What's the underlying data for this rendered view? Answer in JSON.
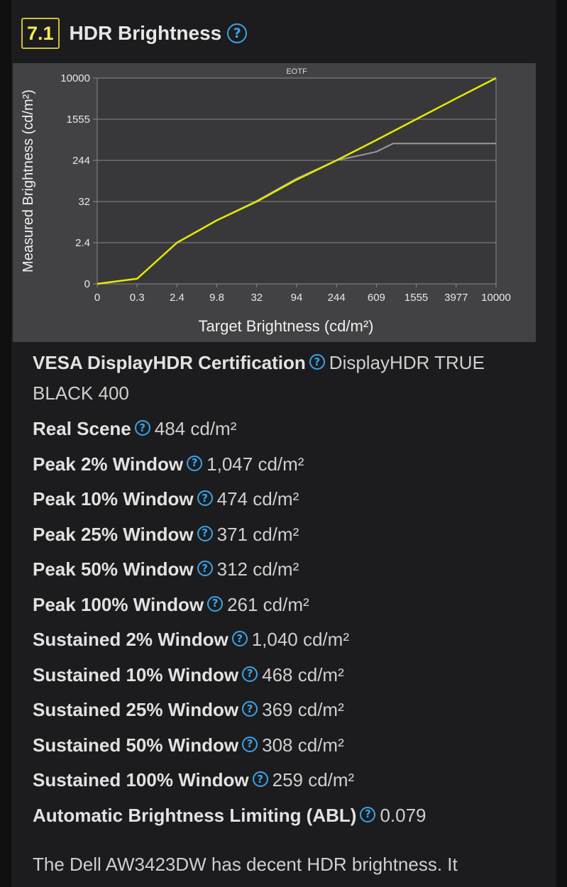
{
  "section": {
    "score": "7.1",
    "title": "HDR Brightness"
  },
  "chart_data": {
    "type": "line",
    "title": "EOTF",
    "xlabel": "Target Brightness (cd/m²)",
    "ylabel": "Measured Brightness (cd/m²)",
    "x_ticks": [
      "0",
      "0.3",
      "2.4",
      "9.8",
      "32",
      "94",
      "244",
      "609",
      "1555",
      "3977",
      "10000"
    ],
    "y_ticks": [
      "0",
      "2.4",
      "32",
      "244",
      "1555",
      "10000"
    ],
    "grid": true,
    "colors": {
      "target": "#e8e800",
      "measured": "#9a9a9c"
    },
    "series": [
      {
        "name": "",
        "role": "target",
        "x": [
          0,
          0.3,
          2.4,
          9.8,
          32,
          94,
          244,
          609,
          1555,
          3977,
          10000
        ],
        "y": [
          0,
          0.3,
          2.4,
          9.8,
          32,
          94,
          244,
          609,
          1555,
          3977,
          10000
        ]
      },
      {
        "name": "",
        "role": "measured",
        "x": [
          0,
          0.3,
          2.4,
          9.8,
          32,
          94,
          244,
          400,
          609,
          900,
          3977,
          10000
        ],
        "y": [
          0,
          0.3,
          2.4,
          9.8,
          33,
          100,
          244,
          300,
          360,
          520,
          520,
          520
        ]
      }
    ]
  },
  "rows": [
    {
      "label": "VESA DisplayHDR Certification",
      "value": "DisplayHDR TRUE BLACK 400"
    },
    {
      "label": "Real Scene",
      "value": "484 cd/m²"
    },
    {
      "label": "Peak 2% Window",
      "value": "1,047 cd/m²"
    },
    {
      "label": "Peak 10% Window",
      "value": "474 cd/m²"
    },
    {
      "label": "Peak 25% Window",
      "value": "371 cd/m²"
    },
    {
      "label": "Peak 50% Window",
      "value": "312 cd/m²"
    },
    {
      "label": "Peak 100% Window",
      "value": "261 cd/m²"
    },
    {
      "label": "Sustained 2% Window",
      "value": "1,040 cd/m²"
    },
    {
      "label": "Sustained 10% Window",
      "value": "468 cd/m²"
    },
    {
      "label": "Sustained 25% Window",
      "value": "369 cd/m²"
    },
    {
      "label": "Sustained 50% Window",
      "value": "308 cd/m²"
    },
    {
      "label": "Sustained 100% Window",
      "value": "259 cd/m²"
    },
    {
      "label": "Automatic Brightness Limiting (ABL)",
      "value": "0.079"
    }
  ],
  "help_icon_glyph": "?",
  "summary": "The Dell AW3423DW has decent HDR brightness. It"
}
